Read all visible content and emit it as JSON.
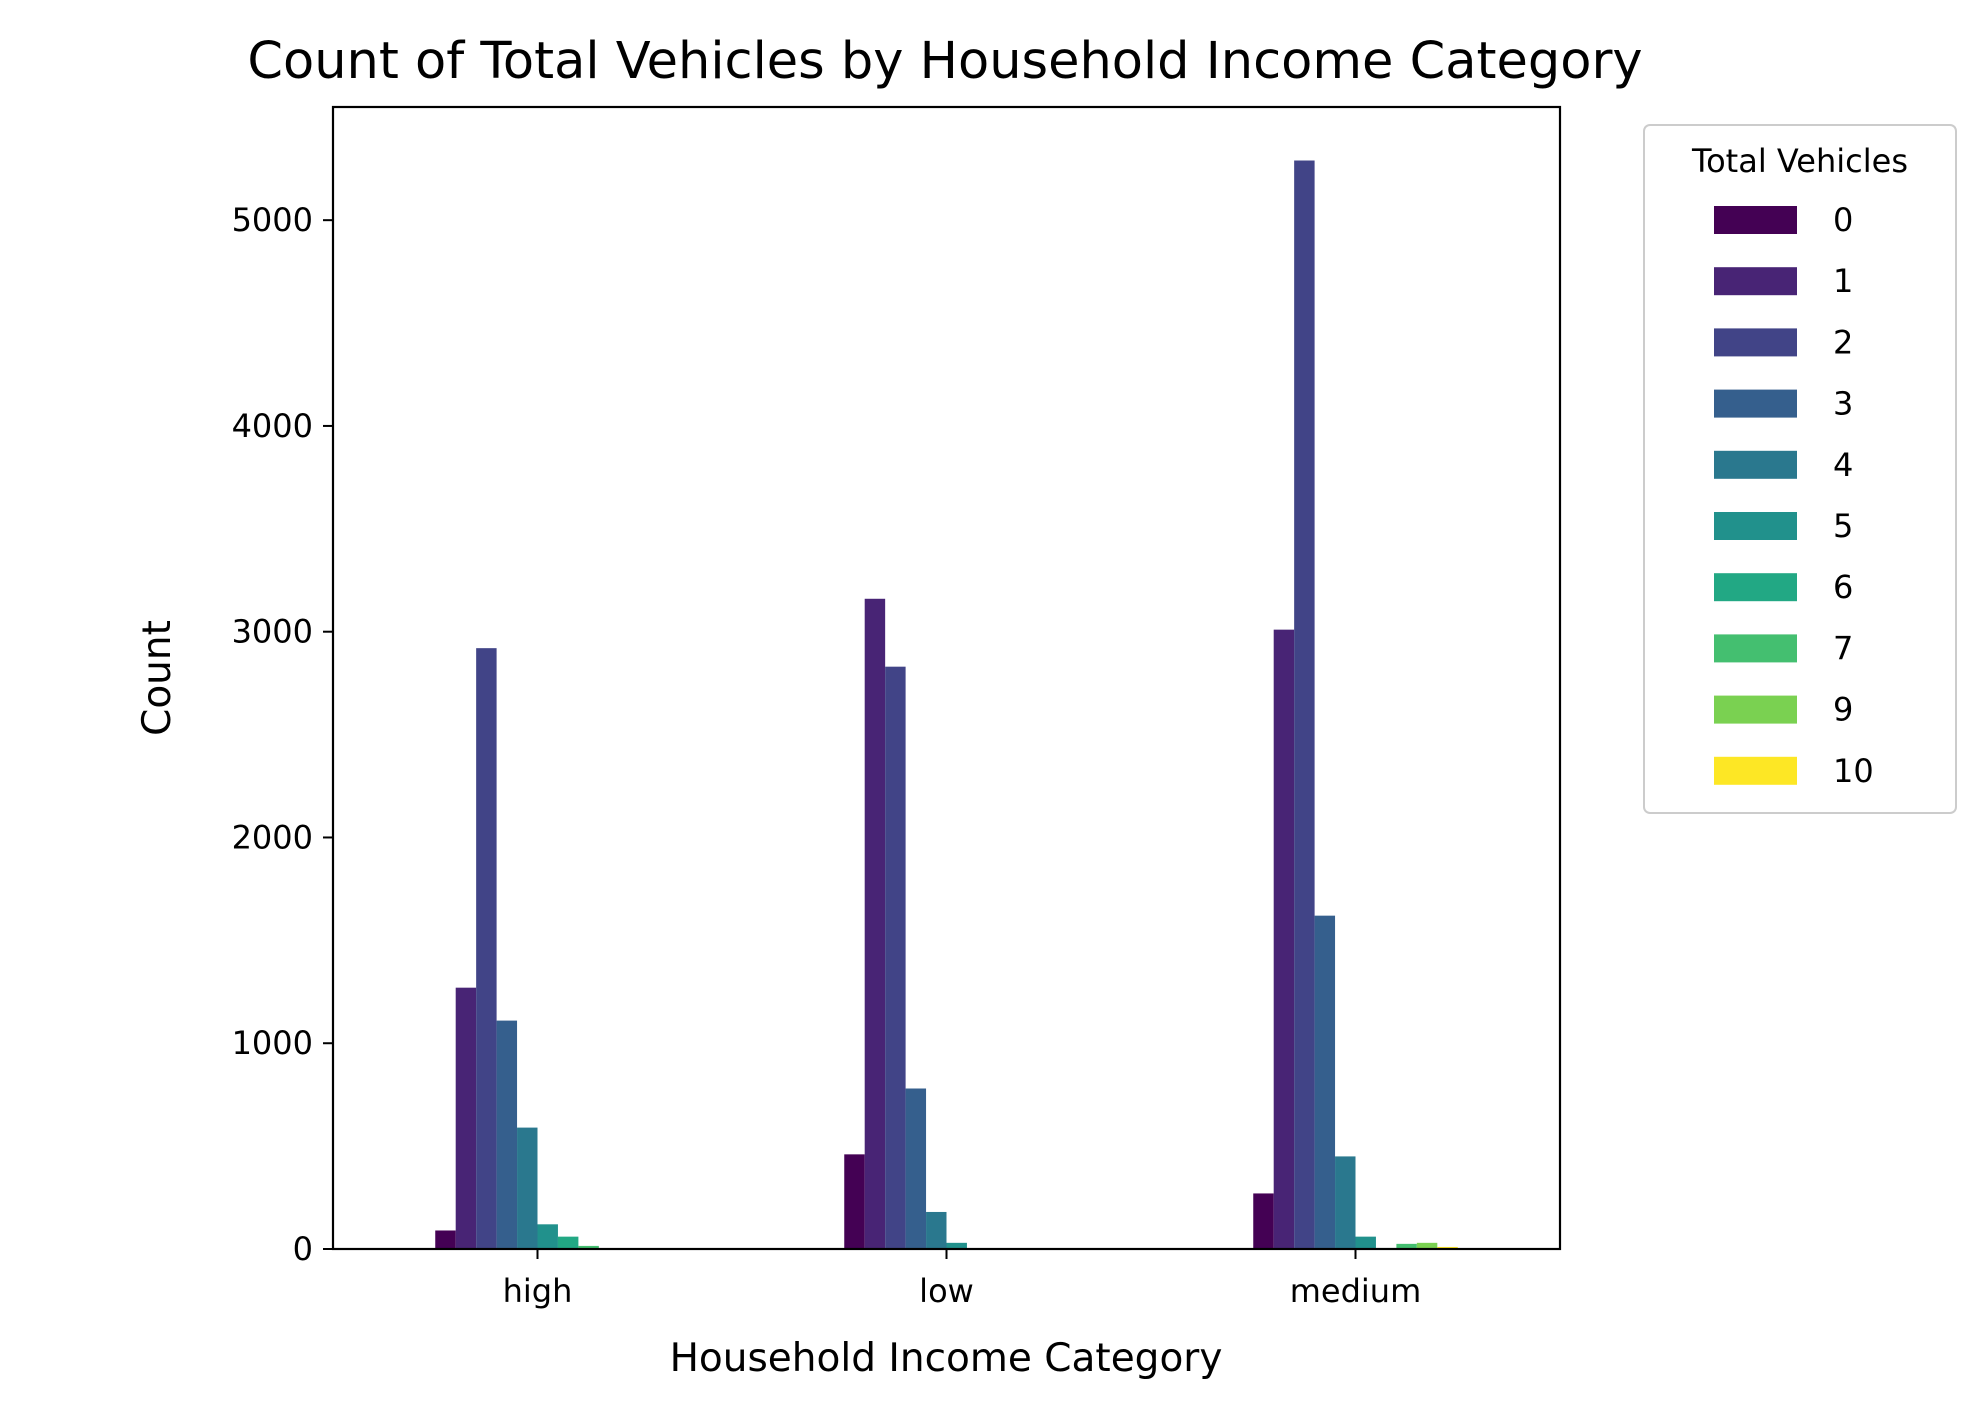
{
  "chart_data": {
    "type": "bar",
    "title": "Count of Total Vehicles by Household Income Category",
    "xlabel": "Household Income Category",
    "ylabel": "Count",
    "categories": [
      "high",
      "low",
      "medium"
    ],
    "ylim": [
      0,
      5550
    ],
    "yticks": [
      0,
      1000,
      2000,
      3000,
      4000,
      5000
    ],
    "grid": false,
    "legend": {
      "title": "Total Vehicles",
      "placement": "outside-upper-right"
    },
    "series": [
      {
        "name": "0",
        "color": "#440154",
        "values": [
          90,
          460,
          270
        ]
      },
      {
        "name": "1",
        "color": "#482475",
        "values": [
          1270,
          3160,
          3010
        ]
      },
      {
        "name": "2",
        "color": "#414487",
        "values": [
          2920,
          2830,
          5290
        ]
      },
      {
        "name": "3",
        "color": "#355f8d",
        "values": [
          1110,
          780,
          1620
        ]
      },
      {
        "name": "4",
        "color": "#2a788e",
        "values": [
          590,
          180,
          450
        ]
      },
      {
        "name": "5",
        "color": "#21918c",
        "values": [
          120,
          30,
          60
        ]
      },
      {
        "name": "6",
        "color": "#22a884",
        "values": [
          60,
          3,
          5
        ]
      },
      {
        "name": "7",
        "color": "#44bf70",
        "values": [
          15,
          1,
          25
        ]
      },
      {
        "name": "9",
        "color": "#7ad151",
        "values": [
          2,
          0,
          30
        ]
      },
      {
        "name": "10",
        "color": "#fde725",
        "values": [
          0,
          0,
          10
        ]
      }
    ]
  }
}
